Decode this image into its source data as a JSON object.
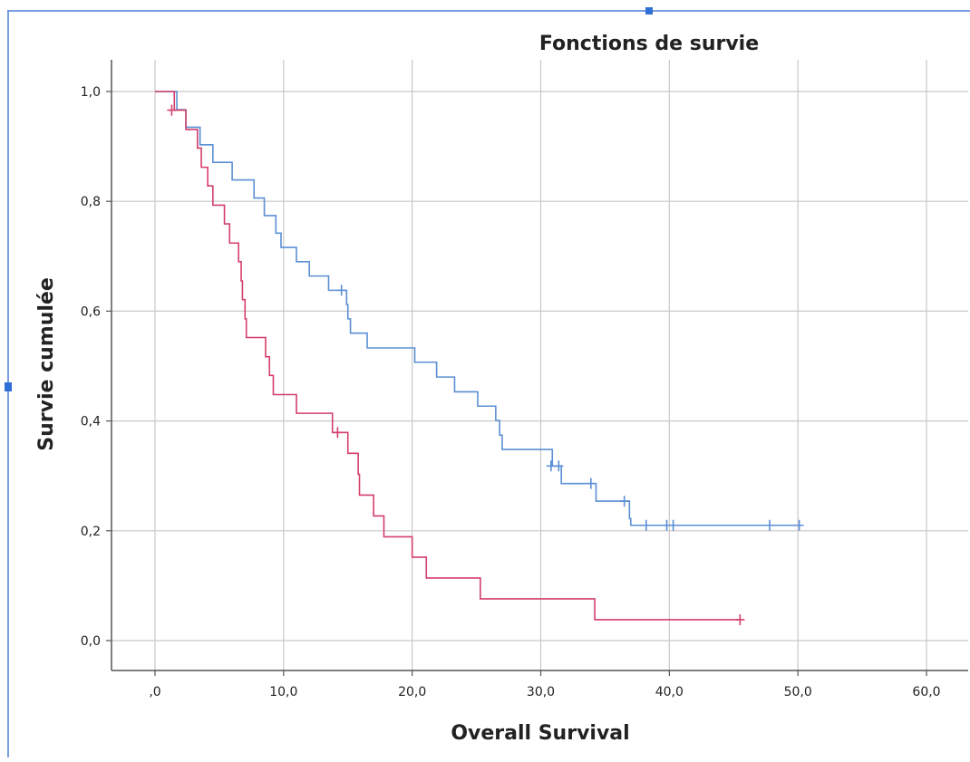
{
  "chart_data": {
    "type": "line",
    "title": "Fonctions de survie",
    "xlabel": "Overall Survival",
    "ylabel": "Survie cumulée",
    "xlim": [
      0,
      60
    ],
    "ylim": [
      0,
      1
    ],
    "x_ticks": [
      0,
      10,
      20,
      30,
      40,
      50,
      60
    ],
    "y_ticks": [
      0,
      0.2,
      0.4,
      0.6,
      0.8,
      1.0
    ],
    "x_tick_labels": [
      ",0",
      "10,0",
      "20,0",
      "30,0",
      "40,0",
      "50,0",
      "60,0"
    ],
    "y_tick_labels": [
      "0,0",
      "0,2",
      "0,4",
      "0,6",
      "0,8",
      "1,0"
    ],
    "grid": true,
    "series": [
      {
        "color": "#5b8fd4",
        "steps": [
          [
            0,
            1.0
          ],
          [
            1.7,
            0.967
          ],
          [
            2.4,
            0.935
          ],
          [
            3.5,
            0.903
          ],
          [
            4.5,
            0.871
          ],
          [
            6.0,
            0.871
          ],
          [
            6.0,
            0.839
          ],
          [
            7.5,
            0.839
          ],
          [
            7.7,
            0.806
          ],
          [
            8.5,
            0.774
          ],
          [
            9.4,
            0.742
          ],
          [
            9.8,
            0.716
          ],
          [
            11.0,
            0.69
          ],
          [
            12.0,
            0.664
          ],
          [
            13.5,
            0.638
          ],
          [
            14.9,
            0.612
          ],
          [
            15.0,
            0.586
          ],
          [
            15.2,
            0.56
          ],
          [
            16.5,
            0.533
          ],
          [
            19.5,
            0.533
          ],
          [
            20.2,
            0.507
          ],
          [
            21.9,
            0.48
          ],
          [
            23.3,
            0.453
          ],
          [
            25.1,
            0.427
          ],
          [
            26.5,
            0.401
          ],
          [
            26.8,
            0.374
          ],
          [
            27.0,
            0.348
          ],
          [
            30.5,
            0.348
          ],
          [
            30.9,
            0.318
          ],
          [
            31.6,
            0.286
          ],
          [
            34.3,
            0.254
          ],
          [
            36.9,
            0.222
          ],
          [
            37.0,
            0.21
          ],
          [
            50.2,
            0.21
          ]
        ],
        "censored": [
          [
            14.5,
            0.638
          ],
          [
            30.8,
            0.318
          ],
          [
            31.4,
            0.318
          ],
          [
            33.9,
            0.286
          ],
          [
            36.5,
            0.254
          ],
          [
            38.2,
            0.21
          ],
          [
            39.8,
            0.21
          ],
          [
            40.3,
            0.21
          ],
          [
            47.8,
            0.21
          ],
          [
            50.1,
            0.21
          ]
        ]
      },
      {
        "color": "#d43f6a",
        "steps": [
          [
            0,
            1.0
          ],
          [
            1.5,
            0.966
          ],
          [
            2.4,
            0.931
          ],
          [
            3.3,
            0.897
          ],
          [
            3.6,
            0.862
          ],
          [
            4.1,
            0.828
          ],
          [
            4.5,
            0.793
          ],
          [
            5.4,
            0.759
          ],
          [
            5.8,
            0.724
          ],
          [
            6.5,
            0.69
          ],
          [
            6.7,
            0.655
          ],
          [
            6.8,
            0.621
          ],
          [
            7.0,
            0.586
          ],
          [
            7.1,
            0.552
          ],
          [
            8.6,
            0.517
          ],
          [
            8.9,
            0.483
          ],
          [
            9.2,
            0.448
          ],
          [
            11.0,
            0.414
          ],
          [
            13.8,
            0.379
          ],
          [
            14.8,
            0.379
          ],
          [
            15.0,
            0.341
          ],
          [
            15.8,
            0.303
          ],
          [
            15.9,
            0.265
          ],
          [
            17.0,
            0.227
          ],
          [
            17.8,
            0.189
          ],
          [
            20.0,
            0.152
          ],
          [
            21.1,
            0.114
          ],
          [
            25.3,
            0.076
          ],
          [
            34.2,
            0.038
          ],
          [
            45.5,
            0.038
          ]
        ],
        "censored": [
          [
            1.3,
            0.966
          ],
          [
            14.2,
            0.379
          ],
          [
            45.5,
            0.038
          ]
        ]
      }
    ]
  }
}
